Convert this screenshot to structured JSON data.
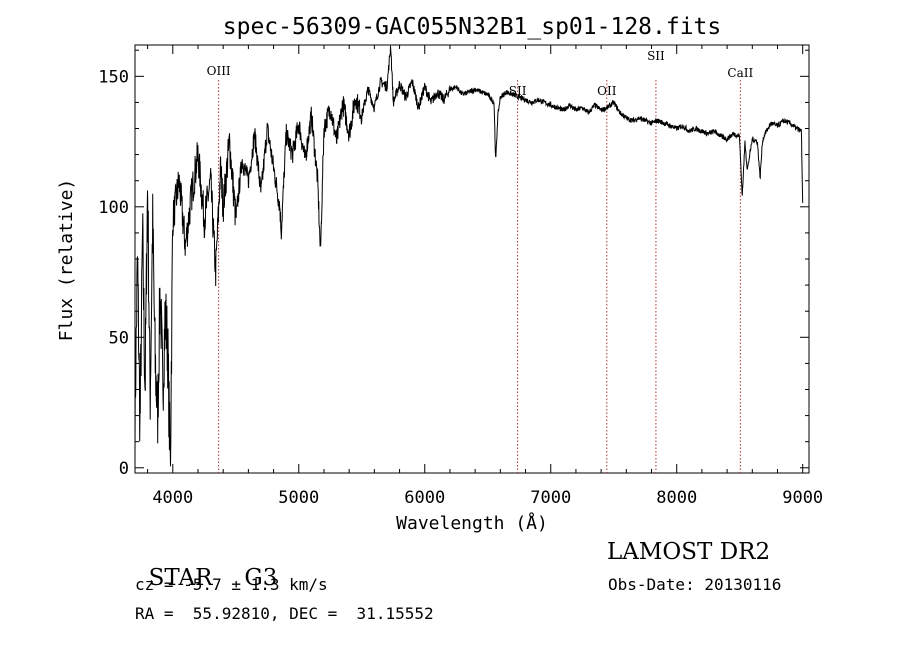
{
  "chart_data": {
    "type": "line",
    "title": "spec-56309-GAC055N32B1_sp01-128.fits",
    "xlabel": "Wavelength (Å)",
    "ylabel": "Flux (relative)",
    "xlim": [
      3700,
      9050
    ],
    "ylim": [
      -2,
      162
    ],
    "xticks": [
      4000,
      5000,
      6000,
      7000,
      8000,
      9000
    ],
    "yticks": [
      0,
      50,
      100,
      150
    ],
    "grid": false,
    "series": [
      {
        "color": "#000000",
        "x": [
          3700,
          3720,
          3740,
          3760,
          3780,
          3800,
          3820,
          3840,
          3860,
          3880,
          3900,
          3920,
          3940,
          3960,
          3980,
          4000,
          4050,
          4100,
          4150,
          4200,
          4250,
          4300,
          4340,
          4380,
          4400,
          4450,
          4500,
          4550,
          4600,
          4650,
          4700,
          4750,
          4800,
          4850,
          4861,
          4900,
          4950,
          5000,
          5050,
          5100,
          5150,
          5172,
          5200,
          5250,
          5300,
          5350,
          5400,
          5450,
          5500,
          5550,
          5600,
          5650,
          5700,
          5730,
          5750,
          5800,
          5850,
          5900,
          5950,
          6000,
          6050,
          6100,
          6150,
          6200,
          6250,
          6300,
          6350,
          6400,
          6450,
          6500,
          6550,
          6563,
          6580,
          6600,
          6650,
          6700,
          6750,
          6800,
          6850,
          6900,
          6950,
          7000,
          7050,
          7100,
          7150,
          7200,
          7250,
          7300,
          7350,
          7400,
          7450,
          7500,
          7550,
          7600,
          7650,
          7700,
          7750,
          7800,
          7850,
          7900,
          7950,
          8000,
          8050,
          8100,
          8150,
          8200,
          8250,
          8300,
          8350,
          8400,
          8450,
          8498,
          8520,
          8542,
          8560,
          8600,
          8640,
          8662,
          8680,
          8700,
          8750,
          8800,
          8850,
          8900,
          8950,
          8990,
          9000
        ],
        "values": [
          20,
          80,
          15,
          90,
          30,
          110,
          25,
          95,
          40,
          20,
          70,
          30,
          60,
          45,
          0,
          95,
          110,
          85,
          105,
          120,
          95,
          110,
          75,
          115,
          100,
          125,
          95,
          118,
          110,
          128,
          105,
          130,
          115,
          100,
          90,
          128,
          120,
          132,
          118,
          135,
          110,
          82,
          130,
          138,
          125,
          140,
          128,
          142,
          135,
          145,
          138,
          148,
          146,
          162,
          140,
          147,
          142,
          148,
          138,
          146,
          140,
          144,
          141,
          145,
          146,
          143,
          144,
          145,
          144,
          143,
          140,
          117,
          135,
          142,
          144,
          143,
          142,
          141,
          140,
          141,
          140,
          139,
          138,
          137,
          139,
          137,
          138,
          136,
          139,
          137,
          138,
          140,
          136,
          134,
          133,
          134,
          133,
          132,
          133,
          132,
          131,
          130,
          131,
          129,
          130,
          129,
          128,
          129,
          127,
          126,
          128,
          127,
          104,
          125,
          114,
          126,
          125,
          111,
          125,
          128,
          132,
          131,
          133,
          132,
          130,
          129,
          100
        ]
      }
    ],
    "lines": [
      {
        "x": 4364,
        "label": "OIII"
      },
      {
        "x": 6737,
        "label": "SII"
      },
      {
        "x": 7445,
        "label": "OII"
      },
      {
        "x": 7835,
        "label": "SII"
      },
      {
        "x": 8505,
        "label": "CaII"
      }
    ]
  },
  "info": {
    "class": "STAR",
    "subclass": "G3",
    "cz": "cz = -5.7 ± 1.3 km/s",
    "coords": "RA =  55.92810, DEC =  31.15552",
    "survey": "LAMOST DR2",
    "obs_date": "Obs-Date: 20130116"
  }
}
